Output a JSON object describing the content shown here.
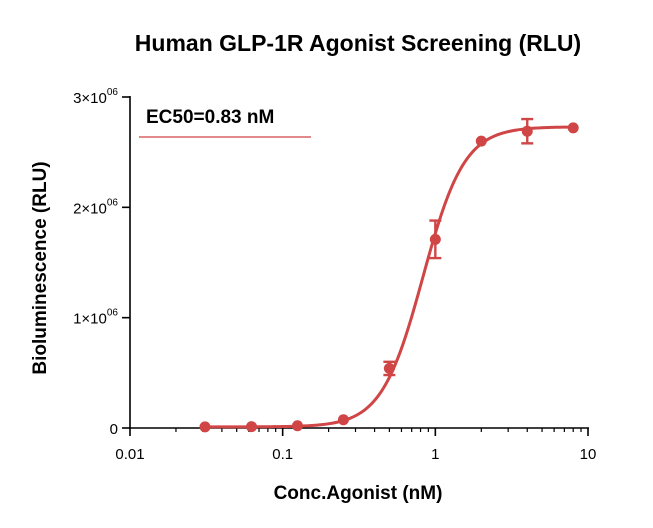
{
  "chart_data": {
    "type": "scatter",
    "title": "Human GLP-1R Agonist Screening  (RLU)",
    "xlabel": "Conc.Agonist (nM)",
    "ylabel": "Bioluminescence (RLU)",
    "x_scale": "log",
    "xlim": [
      0.01,
      10
    ],
    "ylim": [
      0,
      3000000
    ],
    "x_ticks": [
      {
        "value": 0.01,
        "label": "0.01"
      },
      {
        "value": 0.1,
        "label": "0.1"
      },
      {
        "value": 1,
        "label": "1"
      },
      {
        "value": 10,
        "label": "10"
      }
    ],
    "y_ticks": [
      {
        "value": 0,
        "base": "0",
        "exp": ""
      },
      {
        "value": 1000000,
        "base": "1×10",
        "exp": "06"
      },
      {
        "value": 2000000,
        "base": "2×10",
        "exp": "06"
      },
      {
        "value": 3000000,
        "base": "3×10",
        "exp": "06"
      }
    ],
    "annotation": "EC50=0.83 nM",
    "color": "#d04545",
    "grid": false,
    "series": [
      {
        "x": [
          0.031,
          0.0625,
          0.125,
          0.25,
          0.5,
          1,
          2,
          4,
          8
        ],
        "y": [
          10000,
          12000,
          20000,
          75000,
          540000,
          1710000,
          2600000,
          2690000,
          2720000
        ],
        "error": [
          0,
          0,
          0,
          0,
          60000,
          170000,
          0,
          110000,
          0
        ]
      }
    ],
    "fit": {
      "bottom": 10000,
      "top": 2730000,
      "ec50": 0.83,
      "hill": 3.2
    }
  }
}
